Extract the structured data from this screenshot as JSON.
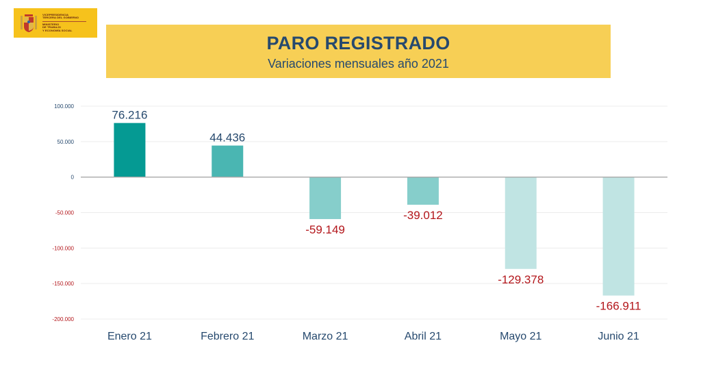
{
  "logo": {
    "lines": [
      "VICEPRESIDENCIA",
      "TERCERA DEL GOBIERNO",
      "MINISTERIO",
      "DE TRABAJO",
      "Y ECONOMÍA SOCIAL"
    ],
    "color": "#f6c21c"
  },
  "header": {
    "title": "PARO REGISTRADO",
    "subtitle": "Variaciones mensuales año 2021",
    "background": "#f7cf55"
  },
  "chart_data": {
    "type": "bar",
    "categories": [
      "Enero 21",
      "Febrero 21",
      "Marzo 21",
      "Abril 21",
      "Mayo 21",
      "Junio 21"
    ],
    "values": [
      76216,
      44436,
      -59149,
      -39012,
      -129378,
      -166911
    ],
    "value_labels": [
      "76.216",
      "44.436",
      "-59.149",
      "-39.012",
      "-129.378",
      "-166.911"
    ],
    "bar_colors": [
      "#059a93",
      "#4ab6b2",
      "#86cecb",
      "#86cecb",
      "#c0e4e3",
      "#c0e4e3"
    ],
    "ylim": [
      -200000,
      100000
    ],
    "yticks": [
      100000,
      50000,
      0,
      -50000,
      -100000,
      -150000,
      -200000
    ],
    "ytick_labels": [
      "100.000",
      "50.000",
      "0",
      "-50.000",
      "-100.000",
      "-150.000",
      "-200.000"
    ],
    "positive_label_color": "#26496e",
    "negative_label_color": "#b3161b",
    "grid": true,
    "title": "PARO REGISTRADO",
    "subtitle": "Variaciones mensuales año 2021",
    "xlabel": "",
    "ylabel": ""
  }
}
